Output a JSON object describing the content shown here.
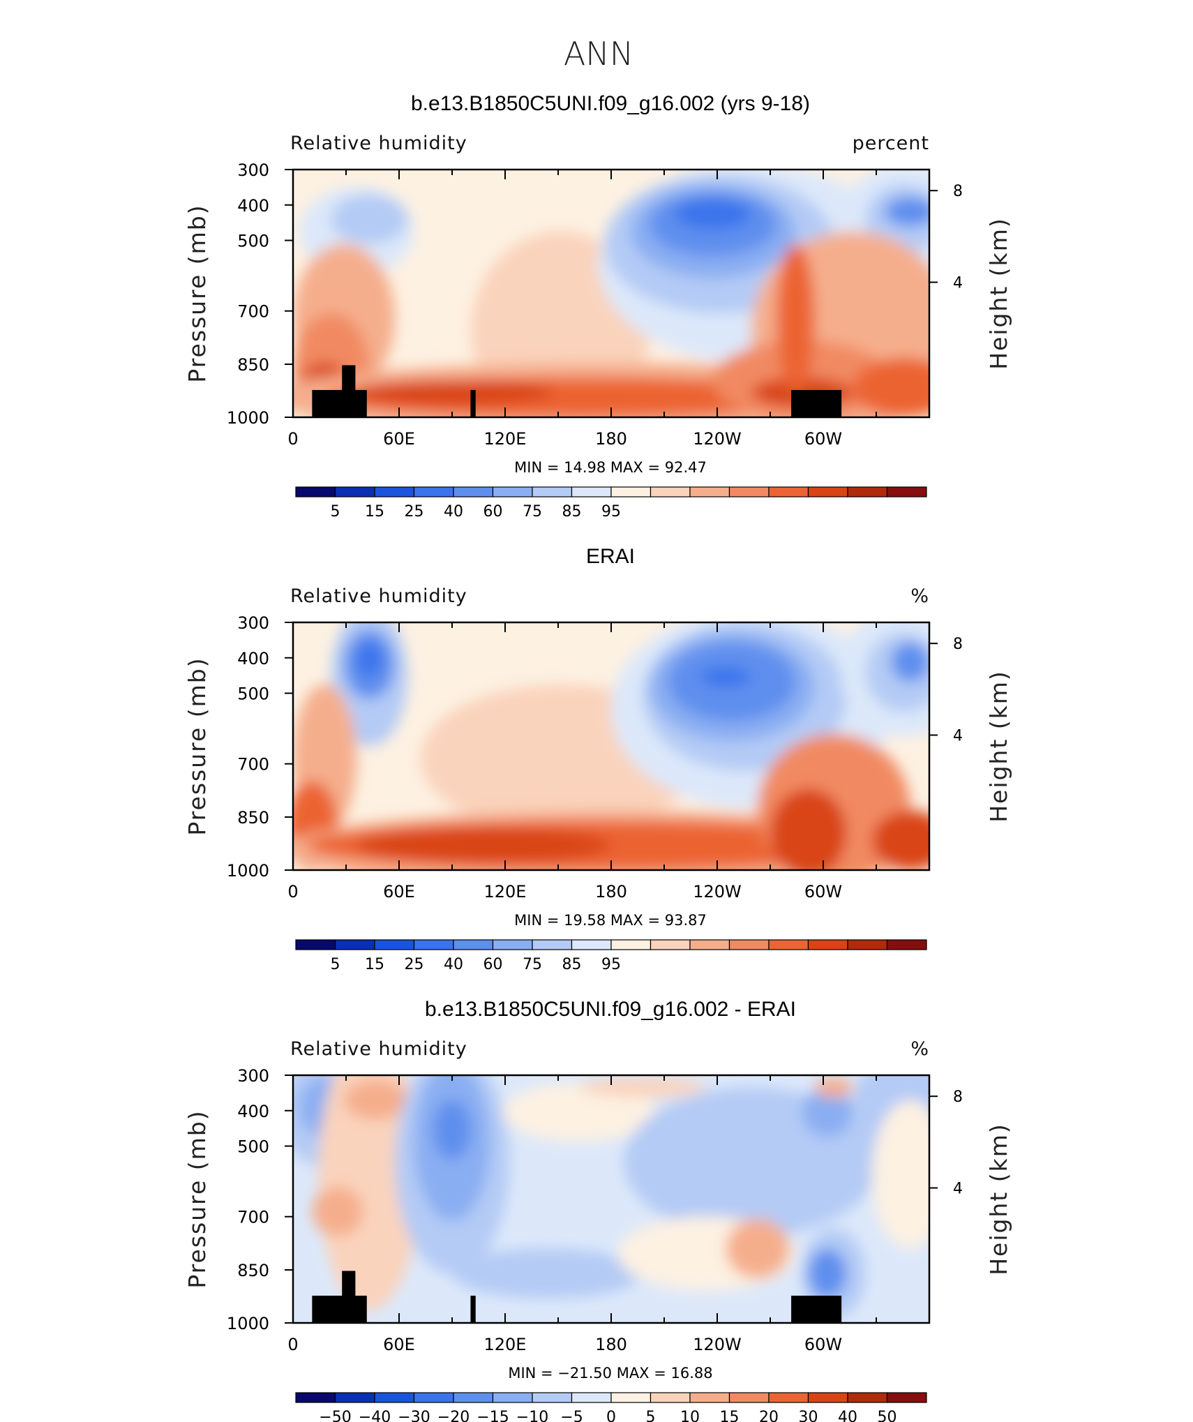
{
  "figure": {
    "title": "ANN"
  },
  "chart_data": [
    {
      "type": "heatmap",
      "title": "b.e13.B1850C5UNI.f09_g16.002 (yrs 9-18)",
      "variable": "Relative humidity",
      "units": "percent",
      "ylabel": "Pressure (mb)",
      "ylabel_right": "Height (km)",
      "x_ticks": [
        "0",
        "60E",
        "120E",
        "180",
        "120W",
        "60W"
      ],
      "y_ticks": [
        "300",
        "400",
        "500",
        "700",
        "850",
        "1000"
      ],
      "right_ticks": [
        "8",
        "4"
      ],
      "stats": {
        "min_label": "MIN =",
        "min": "14.98",
        "max_label": "MAX =",
        "max": "92.47"
      },
      "colorbar": {
        "labels": [
          "5",
          "15",
          "25",
          "40",
          "60",
          "75",
          "85",
          "95"
        ],
        "colors": [
          "#08086e",
          "#0a2fb4",
          "#1a54dc",
          "#3a73ec",
          "#5f8fee",
          "#8aaef2",
          "#b4cbf5",
          "#dce8fa",
          "#fdf1e2",
          "#fad3bc",
          "#f5ae8c",
          "#f18a62",
          "#ec6433",
          "#d94415",
          "#b02a0c",
          "#870e0e"
        ]
      },
      "terrain": true
    },
    {
      "type": "heatmap",
      "title": "ERAI",
      "variable": "Relative humidity",
      "units": "%",
      "ylabel": "Pressure (mb)",
      "ylabel_right": "Height (km)",
      "x_ticks": [
        "0",
        "60E",
        "120E",
        "180",
        "120W",
        "60W"
      ],
      "y_ticks": [
        "300",
        "400",
        "500",
        "700",
        "850",
        "1000"
      ],
      "right_ticks": [
        "8",
        "4"
      ],
      "stats": {
        "min_label": "MIN =",
        "min": "19.58",
        "max_label": "MAX =",
        "max": "93.87"
      },
      "colorbar": {
        "labels": [
          "5",
          "15",
          "25",
          "40",
          "60",
          "75",
          "85",
          "95"
        ],
        "colors": [
          "#08086e",
          "#0a2fb4",
          "#1a54dc",
          "#3a73ec",
          "#5f8fee",
          "#8aaef2",
          "#b4cbf5",
          "#dce8fa",
          "#fdf1e2",
          "#fad3bc",
          "#f5ae8c",
          "#f18a62",
          "#ec6433",
          "#d94415",
          "#b02a0c",
          "#870e0e"
        ]
      },
      "terrain": false
    },
    {
      "type": "heatmap",
      "title": "b.e13.B1850C5UNI.f09_g16.002 - ERAI",
      "variable": "Relative humidity",
      "units": "%",
      "ylabel": "Pressure (mb)",
      "ylabel_right": "Height (km)",
      "x_ticks": [
        "0",
        "60E",
        "120E",
        "180",
        "120W",
        "60W"
      ],
      "y_ticks": [
        "300",
        "400",
        "500",
        "700",
        "850",
        "1000"
      ],
      "right_ticks": [
        "8",
        "4"
      ],
      "stats": {
        "min_label": "MIN =",
        "min": "−21.50",
        "max_label": "MAX =",
        "max": "16.88"
      },
      "colorbar": {
        "labels": [
          "−50",
          "−40",
          "−30",
          "−20",
          "−15",
          "−10",
          "−5",
          "0",
          "5",
          "10",
          "15",
          "20",
          "30",
          "40",
          "50"
        ],
        "colors": [
          "#08086e",
          "#0a2fb4",
          "#1a54dc",
          "#3a73ec",
          "#5f8fee",
          "#8aaef2",
          "#b4cbf5",
          "#dce8fa",
          "#fdf1e2",
          "#fad3bc",
          "#f5ae8c",
          "#f18a62",
          "#ec6433",
          "#d94415",
          "#b02a0c",
          "#870e0e"
        ]
      },
      "terrain": true
    }
  ]
}
